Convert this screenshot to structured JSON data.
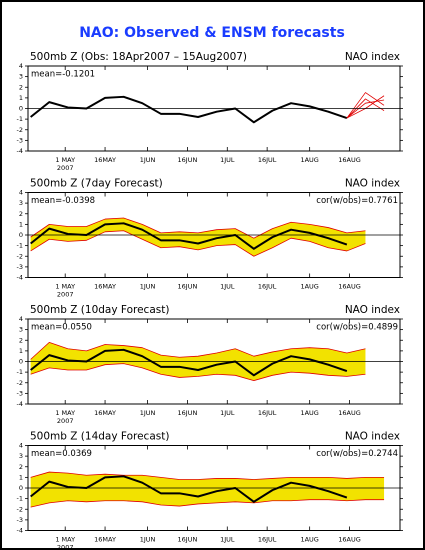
{
  "title": "NAO: Observed & ENSM forecasts",
  "chart_data": [
    {
      "type": "line",
      "header_left": "500mb Z (Obs: 18Apr2007 – 15Aug2007)",
      "header_right": "NAO index",
      "mean": "mean=-0.1201",
      "x": [
        "2007-04-18",
        "2007-04-25",
        "2007-05-02",
        "2007-05-09",
        "2007-05-16",
        "2007-05-23",
        "2007-05-30",
        "2007-06-06",
        "2007-06-13",
        "2007-06-20",
        "2007-06-27",
        "2007-07-04",
        "2007-07-11",
        "2007-07-18",
        "2007-07-25",
        "2007-08-01",
        "2007-08-08",
        "2007-08-15",
        "2007-08-22",
        "2007-08-29"
      ],
      "xlim": [
        "2007-04-17",
        "2007-09-04"
      ],
      "xticks": [
        {
          "value": "2007-05-01",
          "label": "1 MAY"
        },
        {
          "value": "2007-05-16",
          "label": "16MAY"
        },
        {
          "value": "2007-06-01",
          "label": "1JUN"
        },
        {
          "value": "2007-06-16",
          "label": "16JUN"
        },
        {
          "value": "2007-07-01",
          "label": "1JUL"
        },
        {
          "value": "2007-07-16",
          "label": "16JUL"
        },
        {
          "value": "2007-08-01",
          "label": "1AUG"
        },
        {
          "value": "2007-08-16",
          "label": "16AUG"
        }
      ],
      "year_label": "2007",
      "ylim": [
        -4,
        4
      ],
      "yticks": [
        -4,
        -3,
        -2,
        -1,
        0,
        1,
        2,
        3,
        4
      ],
      "zero_line": true,
      "series": [
        {
          "color": "#000000",
          "values": [
            -0.8,
            0.6,
            0.1,
            0.0,
            1.0,
            1.1,
            0.5,
            -0.5,
            -0.5,
            -0.8,
            -0.3,
            0.0,
            -1.3,
            -0.2,
            0.5,
            0.2,
            -0.3,
            -0.9,
            null,
            null
          ]
        },
        {
          "color": "#e00000",
          "values": [
            null,
            null,
            null,
            null,
            null,
            null,
            null,
            null,
            null,
            null,
            null,
            null,
            null,
            null,
            null,
            null,
            null,
            -0.9,
            0.5,
            0.8
          ]
        },
        {
          "color": "#e00000",
          "values": [
            null,
            null,
            null,
            null,
            null,
            null,
            null,
            null,
            null,
            null,
            null,
            null,
            null,
            null,
            null,
            null,
            null,
            -0.9,
            1.5,
            0.3
          ]
        },
        {
          "color": "#e00000",
          "values": [
            null,
            null,
            null,
            null,
            null,
            null,
            null,
            null,
            null,
            null,
            null,
            null,
            null,
            null,
            null,
            null,
            null,
            -0.9,
            0.0,
            1.2
          ]
        },
        {
          "color": "#e00000",
          "values": [
            null,
            null,
            null,
            null,
            null,
            null,
            null,
            null,
            null,
            null,
            null,
            null,
            null,
            null,
            null,
            null,
            null,
            -0.9,
            0.9,
            -0.2
          ]
        }
      ]
    },
    {
      "type": "line",
      "header_left": "500mb Z (7day Forecast)",
      "header_right": "NAO index",
      "mean": "mean=-0.0398",
      "cor": "cor(w/obs)=0.7761",
      "x": [
        "2007-04-18",
        "2007-04-25",
        "2007-05-02",
        "2007-05-09",
        "2007-05-16",
        "2007-05-23",
        "2007-05-30",
        "2007-06-06",
        "2007-06-13",
        "2007-06-20",
        "2007-06-27",
        "2007-07-04",
        "2007-07-11",
        "2007-07-18",
        "2007-07-25",
        "2007-08-01",
        "2007-08-08",
        "2007-08-15",
        "2007-08-22",
        "2007-08-29"
      ],
      "xlim": [
        "2007-04-17",
        "2007-09-04"
      ],
      "xticks": [
        {
          "value": "2007-05-01",
          "label": "1 MAY"
        },
        {
          "value": "2007-05-16",
          "label": "16MAY"
        },
        {
          "value": "2007-06-01",
          "label": "1JUN"
        },
        {
          "value": "2007-06-16",
          "label": "16JUN"
        },
        {
          "value": "2007-07-01",
          "label": "1JUL"
        },
        {
          "value": "2007-07-16",
          "label": "16JUL"
        },
        {
          "value": "2007-08-01",
          "label": "1AUG"
        },
        {
          "value": "2007-08-16",
          "label": "16AUG"
        }
      ],
      "year_label": "2007",
      "ylim": [
        -4,
        4
      ],
      "yticks": [
        -4,
        -3,
        -2,
        -1,
        0,
        1,
        2,
        3,
        4
      ],
      "zero_line": true,
      "band": {
        "color": "#f2e200",
        "edge_color": "#e00000",
        "upper": [
          -0.2,
          1.0,
          0.8,
          0.8,
          1.5,
          1.6,
          1.0,
          0.2,
          0.3,
          0.2,
          0.5,
          0.6,
          -0.3,
          0.6,
          1.2,
          1.0,
          0.7,
          0.2,
          0.4,
          null
        ],
        "lower": [
          -1.5,
          -0.4,
          -0.6,
          -0.5,
          0.3,
          0.4,
          -0.4,
          -1.2,
          -1.1,
          -1.4,
          -1.0,
          -0.9,
          -2.0,
          -1.2,
          -0.3,
          -0.6,
          -1.2,
          -1.5,
          -0.8,
          null
        ]
      },
      "series": [
        {
          "color": "#000000",
          "values": [
            -0.8,
            0.6,
            0.1,
            0.0,
            1.0,
            1.1,
            0.5,
            -0.5,
            -0.5,
            -0.8,
            -0.3,
            0.0,
            -1.3,
            -0.2,
            0.5,
            0.2,
            -0.3,
            -0.9,
            null,
            null
          ]
        }
      ]
    },
    {
      "type": "line",
      "header_left": "500mb Z (10day Forecast)",
      "header_right": "NAO index",
      "mean": "mean=0.0550",
      "cor": "cor(w/obs)=0.4899",
      "x": [
        "2007-04-18",
        "2007-04-25",
        "2007-05-02",
        "2007-05-09",
        "2007-05-16",
        "2007-05-23",
        "2007-05-30",
        "2007-06-06",
        "2007-06-13",
        "2007-06-20",
        "2007-06-27",
        "2007-07-04",
        "2007-07-11",
        "2007-07-18",
        "2007-07-25",
        "2007-08-01",
        "2007-08-08",
        "2007-08-15",
        "2007-08-22",
        "2007-08-29"
      ],
      "xlim": [
        "2007-04-17",
        "2007-09-04"
      ],
      "xticks": [
        {
          "value": "2007-05-01",
          "label": "1 MAY"
        },
        {
          "value": "2007-05-16",
          "label": "16MAY"
        },
        {
          "value": "2007-06-01",
          "label": "1JUN"
        },
        {
          "value": "2007-06-16",
          "label": "16JUN"
        },
        {
          "value": "2007-07-01",
          "label": "1JUL"
        },
        {
          "value": "2007-07-16",
          "label": "16JUL"
        },
        {
          "value": "2007-08-01",
          "label": "1AUG"
        },
        {
          "value": "2007-08-16",
          "label": "16AUG"
        }
      ],
      "year_label": "2007",
      "ylim": [
        -4,
        4
      ],
      "yticks": [
        -4,
        -3,
        -2,
        -1,
        0,
        1,
        2,
        3,
        4
      ],
      "zero_line": true,
      "band": {
        "color": "#f2e200",
        "edge_color": "#e00000",
        "upper": [
          0.2,
          1.8,
          1.2,
          1.0,
          1.6,
          1.5,
          1.3,
          0.6,
          0.4,
          0.5,
          0.8,
          1.2,
          0.5,
          0.9,
          1.2,
          1.3,
          1.2,
          0.8,
          1.2,
          null
        ],
        "lower": [
          -1.2,
          -0.6,
          -0.8,
          -0.8,
          -0.3,
          -0.2,
          -0.6,
          -1.2,
          -1.5,
          -1.4,
          -1.2,
          -1.3,
          -1.8,
          -1.3,
          -1.0,
          -1.1,
          -1.3,
          -1.4,
          -1.2,
          null
        ]
      },
      "series": [
        {
          "color": "#000000",
          "values": [
            -0.8,
            0.6,
            0.1,
            0.0,
            1.0,
            1.1,
            0.5,
            -0.5,
            -0.5,
            -0.8,
            -0.3,
            0.0,
            -1.3,
            -0.2,
            0.5,
            0.2,
            -0.3,
            -0.9,
            null,
            null
          ]
        }
      ]
    },
    {
      "type": "line",
      "header_left": "500mb Z (14day Forecast)",
      "header_right": "NAO index",
      "mean": "mean=0.0369",
      "cor": "cor(w/obs)=0.2744",
      "x": [
        "2007-04-18",
        "2007-04-25",
        "2007-05-02",
        "2007-05-09",
        "2007-05-16",
        "2007-05-23",
        "2007-05-30",
        "2007-06-06",
        "2007-06-13",
        "2007-06-20",
        "2007-06-27",
        "2007-07-04",
        "2007-07-11",
        "2007-07-18",
        "2007-07-25",
        "2007-08-01",
        "2007-08-08",
        "2007-08-15",
        "2007-08-22",
        "2007-08-29"
      ],
      "xlim": [
        "2007-04-17",
        "2007-09-04"
      ],
      "xticks": [
        {
          "value": "2007-05-01",
          "label": "1 MAY"
        },
        {
          "value": "2007-05-16",
          "label": "16MAY"
        },
        {
          "value": "2007-06-01",
          "label": "1JUN"
        },
        {
          "value": "2007-06-16",
          "label": "16JUN"
        },
        {
          "value": "2007-07-01",
          "label": "1JUL"
        },
        {
          "value": "2007-07-16",
          "label": "16JUL"
        },
        {
          "value": "2007-08-01",
          "label": "1AUG"
        },
        {
          "value": "2007-08-16",
          "label": "16AUG"
        }
      ],
      "year_label": "2007",
      "ylim": [
        -4,
        4
      ],
      "yticks": [
        -4,
        -3,
        -2,
        -1,
        0,
        1,
        2,
        3,
        4
      ],
      "zero_line": true,
      "band": {
        "color": "#f2e200",
        "edge_color": "#e00000",
        "upper": [
          1.0,
          1.5,
          1.4,
          1.2,
          1.3,
          1.2,
          1.2,
          1.0,
          0.8,
          0.8,
          0.9,
          0.9,
          0.8,
          0.9,
          1.0,
          1.0,
          1.0,
          0.9,
          1.0,
          1.0
        ],
        "lower": [
          -1.8,
          -1.4,
          -1.2,
          -1.3,
          -1.2,
          -1.2,
          -1.3,
          -1.6,
          -1.7,
          -1.5,
          -1.4,
          -1.3,
          -1.4,
          -1.2,
          -1.2,
          -1.1,
          -1.1,
          -1.2,
          -1.1,
          -1.1
        ]
      },
      "series": [
        {
          "color": "#000000",
          "values": [
            -0.8,
            0.6,
            0.1,
            0.0,
            1.0,
            1.1,
            0.5,
            -0.5,
            -0.5,
            -0.8,
            -0.3,
            0.0,
            -1.3,
            -0.2,
            0.5,
            0.2,
            -0.3,
            -0.9,
            null,
            null
          ]
        }
      ]
    }
  ]
}
